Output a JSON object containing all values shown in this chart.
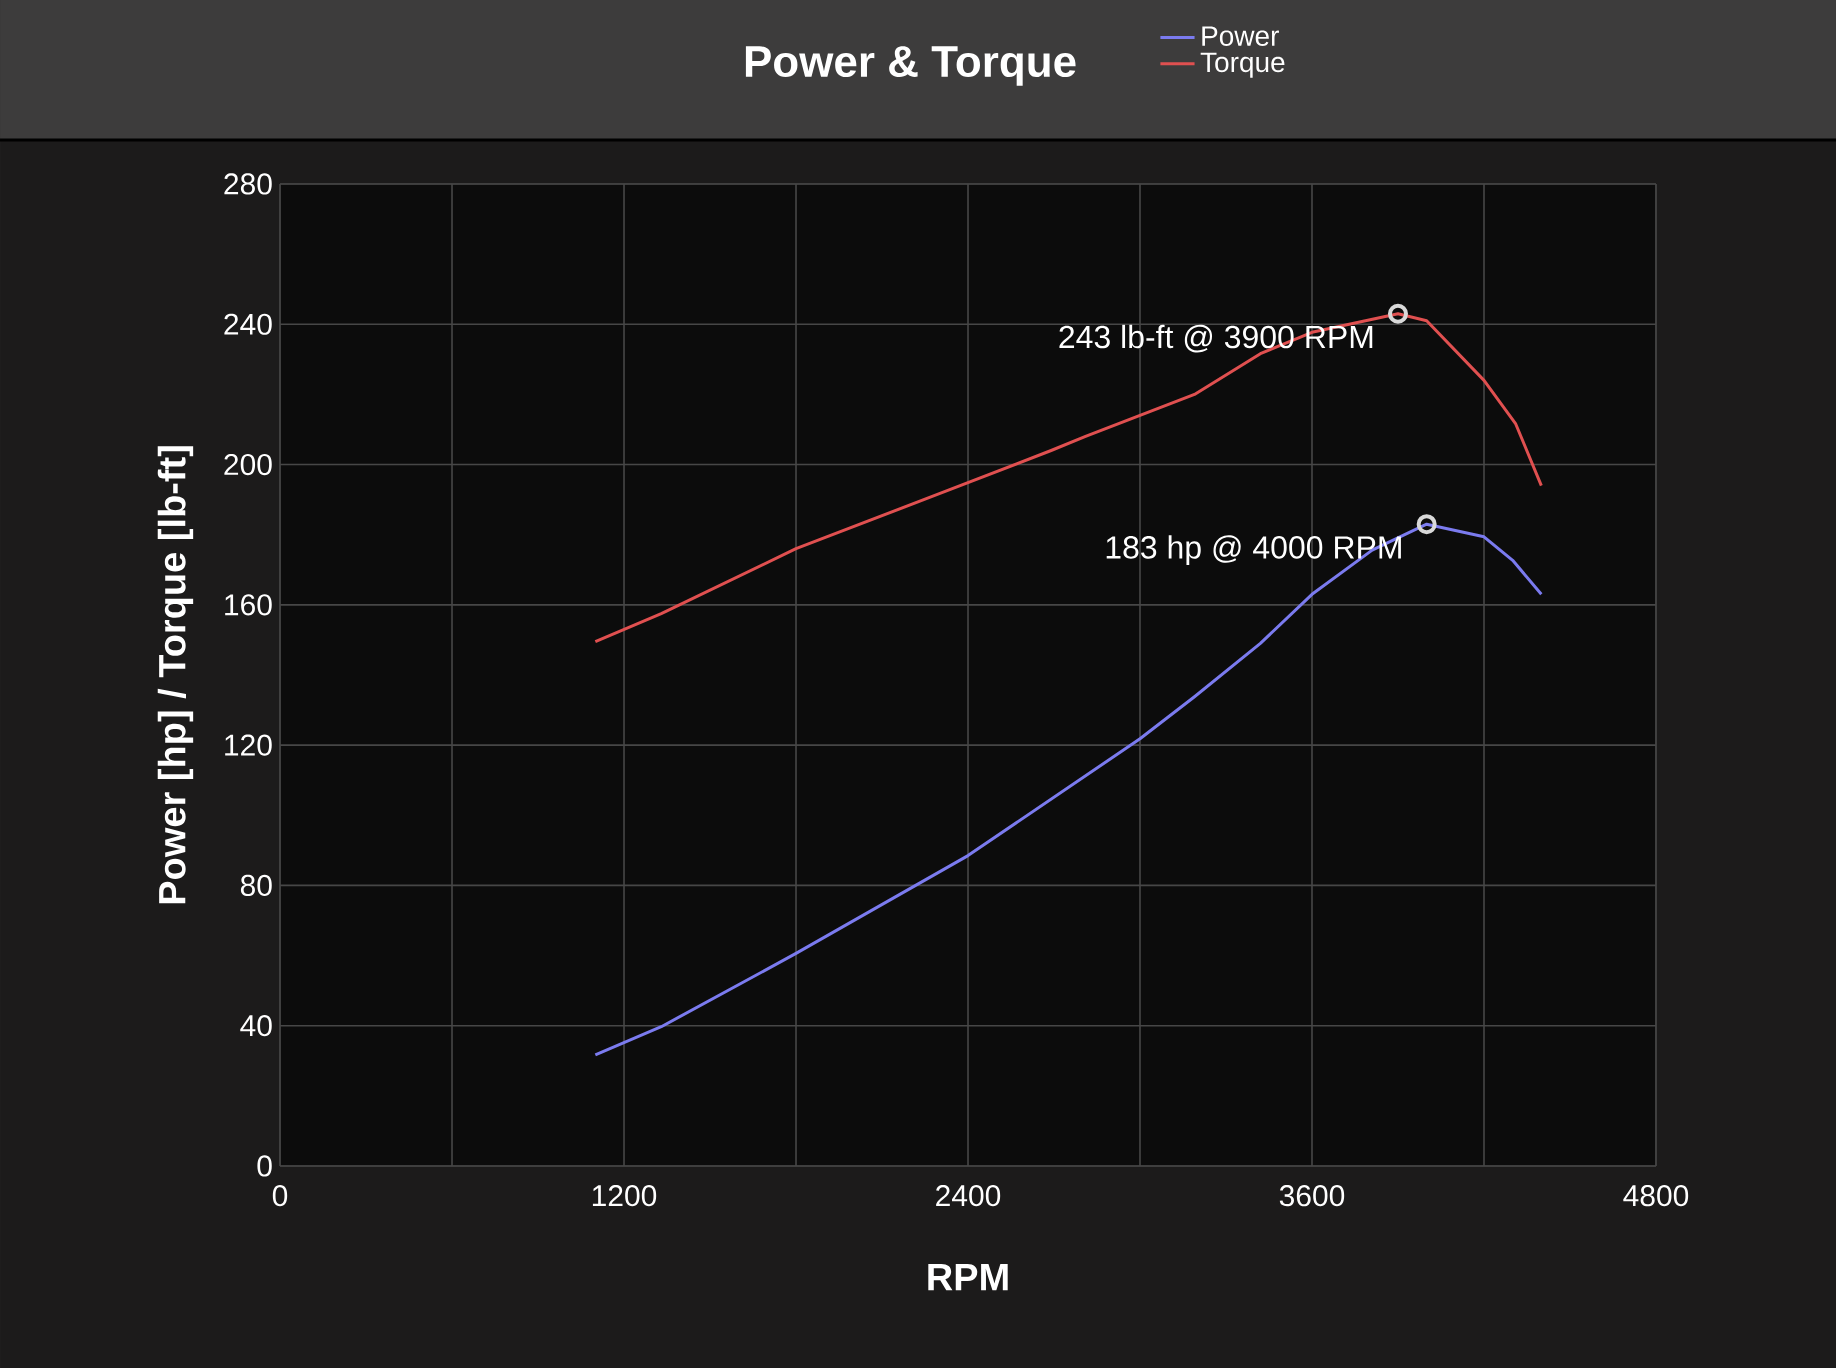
{
  "chart_data": {
    "type": "line",
    "title": "Power & Torque",
    "xlabel": "RPM",
    "ylabel": "Power [hp] / Torque [lb-ft]",
    "xlim": [
      0,
      4800
    ],
    "ylim": [
      0,
      280
    ],
    "xticks": [
      0,
      {
        "value": 600,
        "label": null
      },
      1200,
      {
        "value": 1800,
        "label": null
      },
      2400,
      {
        "value": 3000,
        "label": null
      },
      3600,
      {
        "value": 4200,
        "label": null
      },
      4800
    ],
    "yticks": [
      0,
      40,
      80,
      120,
      160,
      200,
      240,
      280
    ],
    "grid": true,
    "legend": "top",
    "marker": "none",
    "line_style": "solid",
    "series": [
      {
        "name": "Power",
        "color": "#7b7bef",
        "x": [
          1100,
          1330,
          1800,
          2400,
          3000,
          3190,
          3420,
          3600,
          3810,
          4000,
          4200,
          4300,
          4400
        ],
        "values": [
          31.7,
          39.7,
          60.6,
          88.5,
          121.8,
          133.8,
          149,
          163,
          175.6,
          183,
          179.4,
          172.7,
          163
        ]
      },
      {
        "name": "Torque",
        "color": "#e05050",
        "x": [
          1100,
          1330,
          1800,
          2300,
          2690,
          2810,
          3190,
          3420,
          3600,
          3900,
          4000,
          4200,
          4310,
          4400
        ],
        "values": [
          149.5,
          157.5,
          176,
          191.7,
          204,
          208,
          220,
          231.6,
          237.7,
          243,
          241,
          224,
          211.7,
          194
        ]
      }
    ],
    "annotations": [
      {
        "text": "243 lb-ft @ 3900 RPM",
        "x": 3900,
        "y": 243
      },
      {
        "text": "183 hp @ 4000 RPM",
        "x": 4000,
        "y": 183
      }
    ]
  }
}
